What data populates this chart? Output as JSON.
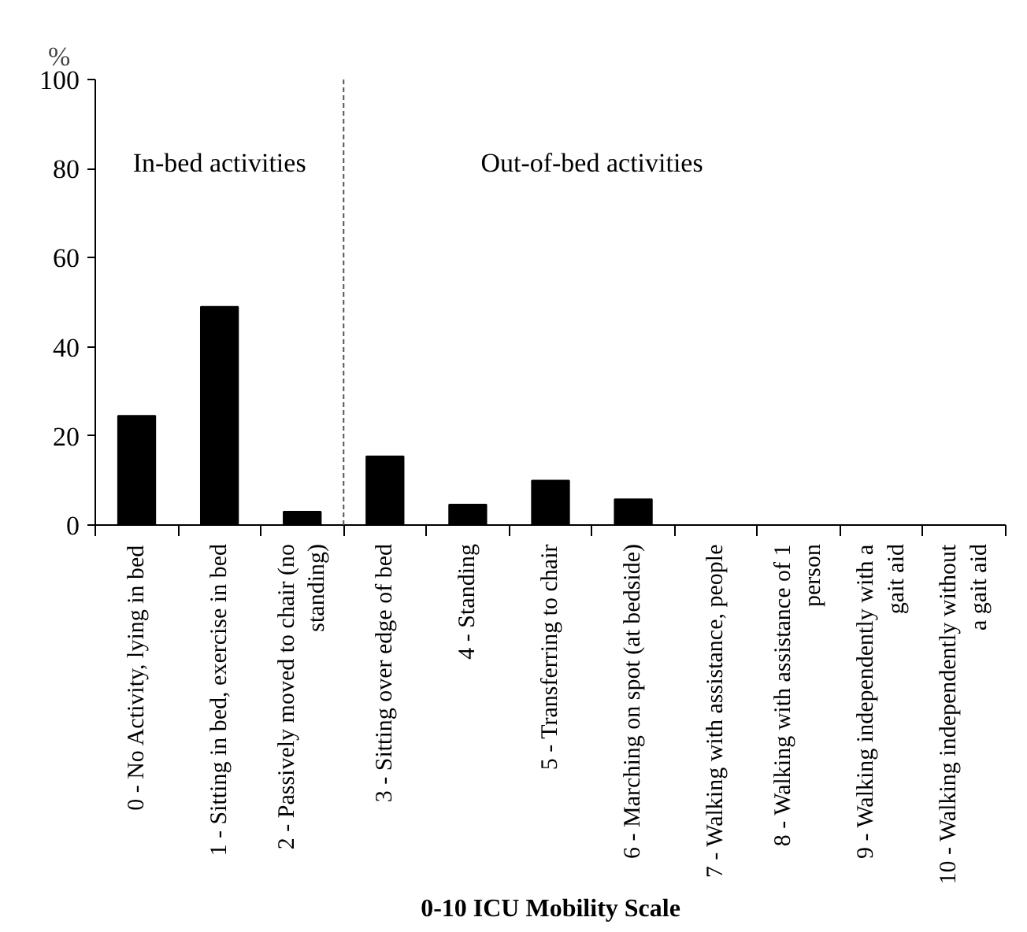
{
  "chart_data": {
    "type": "bar",
    "xlabel": "0-10 ICU Mobility Scale",
    "ylabel": "%",
    "categories": [
      "0 - No Activity, lying in bed",
      "1 - Sitting in bed, exercise in bed",
      "2 - Passively moved to chair (no standing)",
      "3 - Sitting over edge of bed",
      "4 - Standing",
      "5 - Transferring to chair",
      "6 - Marching on spot (at bedside)",
      "7 - Walking with assistance, people",
      "8 - Walking with assistance of 1 person",
      "9 - Walking independently with a gait aid",
      "10 - Walking independently without a gait aid"
    ],
    "values": [
      24.5,
      49,
      3,
      15.4,
      4.6,
      10,
      5.8,
      0,
      0,
      0,
      0
    ],
    "color": "#000000",
    "ylim": [
      0,
      100
    ],
    "yticks": [
      0,
      20,
      40,
      60,
      80,
      100
    ],
    "grid": false,
    "annotations": [
      "In-bed activities",
      "Out-of-bed activities"
    ]
  }
}
